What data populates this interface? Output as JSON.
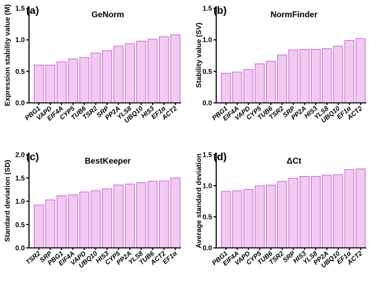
{
  "colors": {
    "bar_fill": "#f2c9f2",
    "bar_stroke": "#c060c8",
    "axis": "#000000"
  },
  "chart_data": [
    {
      "type": "bar",
      "panel": "(a)",
      "title": "GeNorm",
      "ylabel": "Expression stability value (M)",
      "ylim": [
        0,
        1.5
      ],
      "yticks": [
        "0.0",
        "0.5",
        "1.0",
        "1.5"
      ],
      "categories": [
        "PBG1",
        "VAPD",
        "EIF4A",
        "CYP5",
        "TUB6",
        "TSR2",
        "SRP",
        "PP2A",
        "YLS8",
        "UBQ10",
        "HIS3",
        "EF1α",
        "ACT2"
      ],
      "values": [
        0.6,
        0.6,
        0.65,
        0.7,
        0.72,
        0.79,
        0.83,
        0.9,
        0.94,
        0.98,
        1.01,
        1.05,
        1.08
      ]
    },
    {
      "type": "bar",
      "panel": "(b)",
      "title": "NormFinder",
      "ylabel": "Stability value (SV)",
      "ylim": [
        0,
        1.5
      ],
      "yticks": [
        "0.0",
        "0.5",
        "1.0",
        "1.5"
      ],
      "categories": [
        "PBG1",
        "EIF4A",
        "VAPD",
        "CYP5",
        "TUB6",
        "TSR2",
        "SRP",
        "PP2A",
        "HIS3",
        "YLS8",
        "UBQ10",
        "EF1α",
        "ACT2"
      ],
      "values": [
        0.47,
        0.49,
        0.53,
        0.62,
        0.66,
        0.76,
        0.84,
        0.85,
        0.85,
        0.86,
        0.9,
        0.99,
        1.02
      ]
    },
    {
      "type": "bar",
      "panel": "(c)",
      "title": "BestKeeper",
      "ylabel": "Standard deviation (SD)",
      "ylim": [
        0,
        2.0
      ],
      "yticks": [
        "0.0",
        "0.5",
        "1.0",
        "1.5",
        "2.0"
      ],
      "categories": [
        "TSR2",
        "SRP",
        "PBG1",
        "EIF4A",
        "VAPD",
        "UBQ10",
        "HIS3",
        "CYP5",
        "PP2A",
        "YLS8",
        "TUB6",
        "ACT2",
        "EF1α"
      ],
      "values": [
        0.92,
        1.03,
        1.12,
        1.14,
        1.2,
        1.23,
        1.27,
        1.35,
        1.37,
        1.4,
        1.43,
        1.44,
        1.5
      ]
    },
    {
      "type": "bar",
      "panel": "(d)",
      "title": "ΔCt",
      "ylabel": "Average standard deviation",
      "ylim": [
        0,
        1.5
      ],
      "yticks": [
        "0.0",
        "0.5",
        "1.0",
        "1.5"
      ],
      "categories": [
        "PBG1",
        "EIF4A",
        "VAPD",
        "CYP5",
        "TUB6",
        "TSR2",
        "SRP",
        "HIS3",
        "YLS8",
        "PP2A",
        "UBQ10",
        "EF1α",
        "ACT2"
      ],
      "values": [
        0.91,
        0.92,
        0.94,
        1.0,
        1.01,
        1.07,
        1.12,
        1.15,
        1.15,
        1.17,
        1.18,
        1.26,
        1.27
      ]
    }
  ]
}
